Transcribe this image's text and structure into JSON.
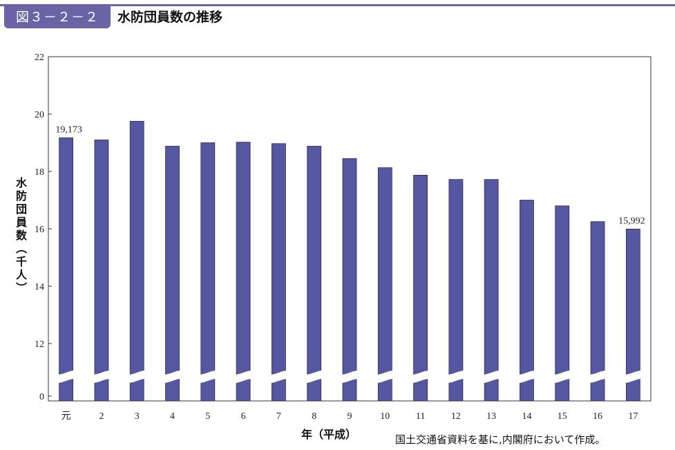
{
  "figure": {
    "number": "図３－２－２",
    "title": "水防団員数の推移",
    "source": "国土交通省資料を基に,内閣府において作成。"
  },
  "chart_data": {
    "type": "bar",
    "ylabel": "水防団員数（千人）",
    "xlabel": "年（平成）",
    "categories": [
      "元",
      "2",
      "3",
      "4",
      "5",
      "6",
      "7",
      "8",
      "9",
      "10",
      "11",
      "12",
      "13",
      "14",
      "15",
      "16",
      "17"
    ],
    "values": [
      19.173,
      19.1,
      19.75,
      18.88,
      19.0,
      19.02,
      18.97,
      18.88,
      18.45,
      18.13,
      17.87,
      17.72,
      17.72,
      17.0,
      16.8,
      16.25,
      15.992
    ],
    "data_labels": [
      {
        "index": 0,
        "text": "19,173"
      },
      {
        "index": 16,
        "text": "15,992"
      }
    ],
    "yticks": [
      "0",
      "12",
      "14",
      "16",
      "18",
      "20",
      "22"
    ],
    "ylim": [
      10,
      22
    ],
    "axis_break": true,
    "bar_color": "#5558a0",
    "grid": false,
    "legend": "none"
  }
}
